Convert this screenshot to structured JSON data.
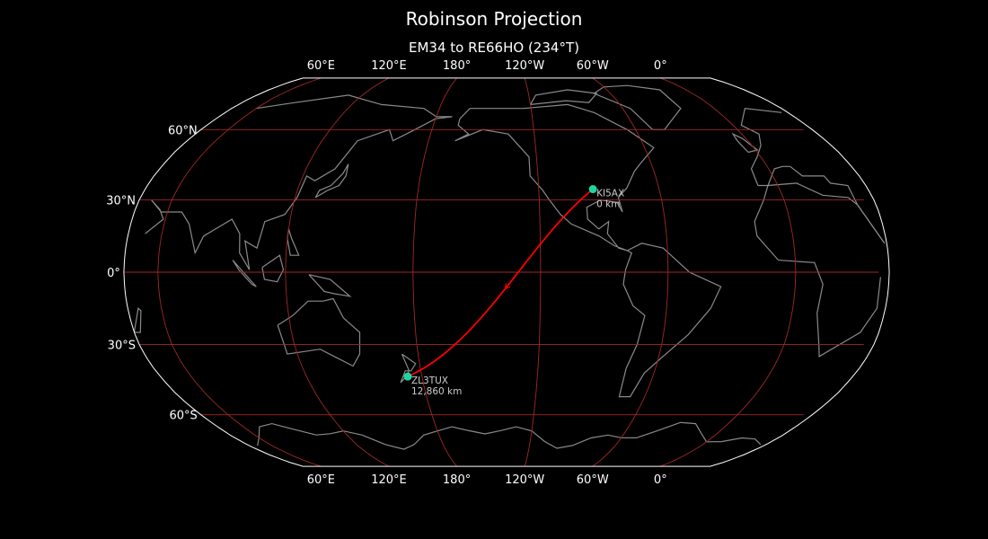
{
  "title": "Robinson Projection",
  "subtitle": "EM34 to RE66HO (234°T)",
  "projection": "Robinson",
  "central_longitude": -136,
  "colors": {
    "background": "#000000",
    "coastline": "#8a8a8a",
    "gridline": "#a02828",
    "path": "#ff0000",
    "station": "#1fd6a0",
    "border": "#ffffff"
  },
  "longitude_ticks": [
    {
      "lon": 60,
      "label": "60°E"
    },
    {
      "lon": 120,
      "label": "120°E"
    },
    {
      "lon": 180,
      "label": "180°"
    },
    {
      "lon": -120,
      "label": "120°W"
    },
    {
      "lon": -60,
      "label": "60°W"
    },
    {
      "lon": 0,
      "label": "0°"
    }
  ],
  "latitude_ticks": [
    {
      "lat": 60,
      "label": "60°N"
    },
    {
      "lat": 30,
      "label": "30°N"
    },
    {
      "lat": 0,
      "label": "0°"
    },
    {
      "lat": -30,
      "label": "30°S"
    },
    {
      "lat": -60,
      "label": "60°S"
    }
  ],
  "stations": [
    {
      "call": "KI5AX",
      "grid": "EM34",
      "lat": 34.5,
      "lon": -93.0,
      "distance": "0 km"
    },
    {
      "call": "ZL3TUX",
      "grid": "RE66HO",
      "lat": -43.4,
      "lon": 172.6,
      "distance": "12,860 km"
    }
  ]
}
